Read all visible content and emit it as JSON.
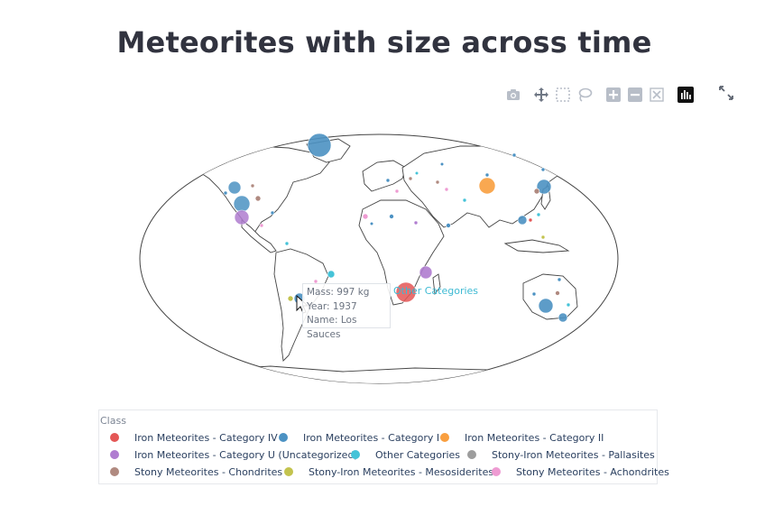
{
  "title": "Meteorites with size across time",
  "modebar": {
    "icons": [
      "camera-icon",
      "pan-icon",
      "box-select-icon",
      "lasso-icon",
      "zoom-in-icon",
      "zoom-out-icon",
      "autoscale-icon",
      "plotly-logo-icon"
    ],
    "expand_icon": "fullscreen-icon"
  },
  "tooltip": {
    "mass": "Mass: 997 kg",
    "year": "Year: 1937",
    "name": "Name: Los Sauces"
  },
  "annotation": "Other Categories",
  "legend": {
    "title": "Class",
    "items": [
      {
        "label": "Iron Meteorites - Category IV",
        "color": "#e45756"
      },
      {
        "label": "Iron Meteorites - Category I",
        "color": "#4c92c3"
      },
      {
        "label": "Iron Meteorites - Category II",
        "color": "#f99f3f"
      },
      {
        "label": "Iron Meteorites - Category U (Uncategorized)",
        "color": "#b07dd0"
      },
      {
        "label": "Other Categories",
        "color": "#45c3d8"
      },
      {
        "label": "Stony-Iron Meteorites - Pallasites",
        "color": "#9d9d9d"
      },
      {
        "label": "Stony Meteorites - Chondrites",
        "color": "#b08a80"
      },
      {
        "label": "Stony-Iron Meteorites - Mesosiderites",
        "color": "#c3c34e"
      },
      {
        "label": "Stony Meteorites - Achondrites",
        "color": "#ee9bd2"
      }
    ]
  }
}
